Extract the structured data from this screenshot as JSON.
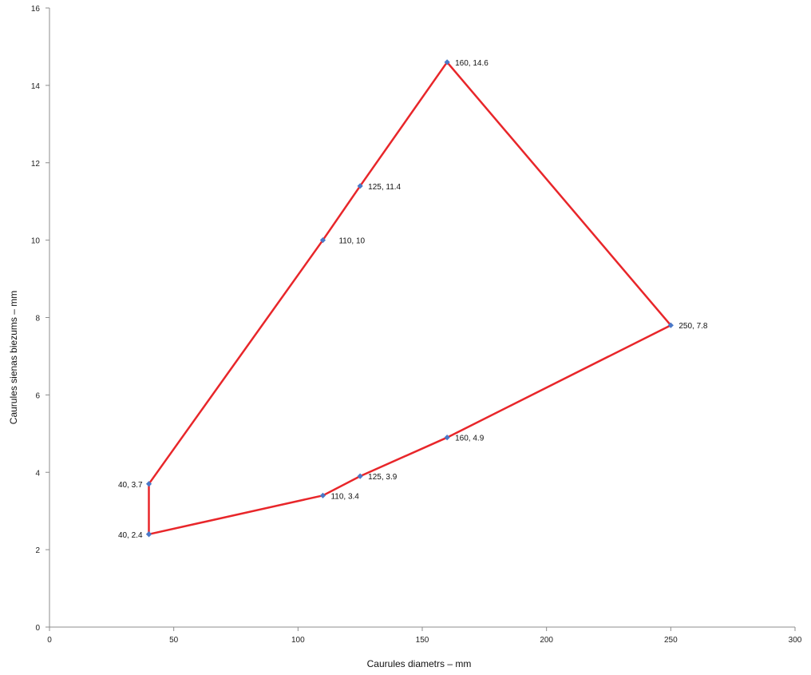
{
  "chart_data": {
    "type": "line",
    "title": "",
    "xlabel": "Caurules diametrs – mm",
    "ylabel": "Caurules sienas biezums – mm",
    "xlim": [
      0,
      300
    ],
    "ylim": [
      0,
      16
    ],
    "xticks": [
      0,
      50,
      100,
      150,
      200,
      250,
      300
    ],
    "yticks": [
      0,
      2,
      4,
      6,
      8,
      10,
      12,
      14,
      16
    ],
    "grid": false,
    "legend": "none",
    "line_color": "#e8262a",
    "marker_color": "#4a78c8",
    "points": [
      {
        "x": 40,
        "y": 2.4,
        "label": "40, 2.4"
      },
      {
        "x": 110,
        "y": 3.4,
        "label": "110, 3.4"
      },
      {
        "x": 125,
        "y": 3.9,
        "label": "125, 3.9"
      },
      {
        "x": 160,
        "y": 4.9,
        "label": "160, 4.9"
      },
      {
        "x": 250,
        "y": 7.8,
        "label": "250, 7.8"
      },
      {
        "x": 160,
        "y": 14.6,
        "label": "160, 14.6"
      },
      {
        "x": 125,
        "y": 11.4,
        "label": "125, 11.4"
      },
      {
        "x": 110,
        "y": 10,
        "label": "110, 10"
      },
      {
        "x": 40,
        "y": 3.7,
        "label": "40, 3.7"
      },
      {
        "x": 40,
        "y": 2.4,
        "label": ""
      }
    ]
  }
}
